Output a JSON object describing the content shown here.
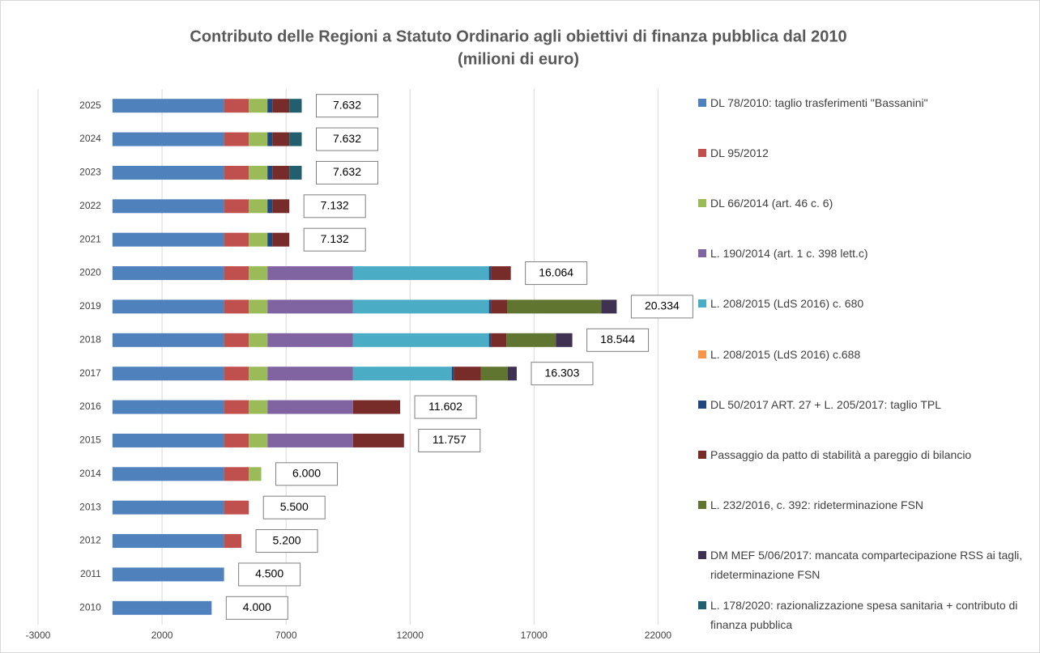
{
  "chart_data": {
    "type": "stacked-bar-horizontal",
    "title": "Contributo delle Regioni a Statuto Ordinario agli obiettivi di finanza pubblica dal 2010",
    "subtitle": "(milioni di euro)",
    "categories": [
      "2025",
      "2024",
      "2023",
      "2022",
      "2021",
      "2020",
      "2019",
      "2018",
      "2017",
      "2016",
      "2015",
      "2014",
      "2013",
      "2012",
      "2011",
      "2010"
    ],
    "xlim": [
      -3000,
      23000
    ],
    "xticks": [
      -3000,
      2000,
      7000,
      12000,
      17000,
      22000
    ],
    "grid": true,
    "legend": "right",
    "series": [
      {
        "name": "DL 78/2010: taglio trasferimenti \"Bassanini\"",
        "color": "#4f81bd",
        "values": [
          4500,
          4500,
          4500,
          4500,
          4500,
          4500,
          4500,
          4500,
          4500,
          4500,
          4500,
          4500,
          4500,
          4500,
          4500,
          4000
        ]
      },
      {
        "name": "DL 95/2012",
        "color": "#c0504d",
        "values": [
          1000,
          1000,
          1000,
          1000,
          1000,
          1000,
          1000,
          1000,
          1000,
          1000,
          1000,
          1000,
          1000,
          700,
          null,
          null
        ]
      },
      {
        "name": "DL 66/2014 (art. 46 c. 6)",
        "color": "#9bbb59",
        "values": [
          750,
          750,
          750,
          750,
          750,
          750,
          750,
          750,
          750,
          750,
          750,
          500,
          null,
          null,
          null,
          null
        ]
      },
      {
        "name": "L. 190/2014 (art. 1 c. 398 lett.c)",
        "color": "#8064a2",
        "values": [
          null,
          null,
          null,
          null,
          null,
          3452,
          3452,
          3452,
          3452,
          3452,
          3452,
          null,
          null,
          null,
          null,
          null
        ]
      },
      {
        "name": "L. 208/2015 (LdS 2016) c. 680",
        "color": "#4bacc6",
        "values": [
          null,
          null,
          null,
          null,
          null,
          5480,
          5480,
          5480,
          3980,
          null,
          null,
          null,
          null,
          null,
          null,
          null
        ]
      },
      {
        "name": "L. 208/2015 (LdS 2016) c.688",
        "color": "#f79646",
        "values": [
          null,
          null,
          null,
          null,
          null,
          null,
          null,
          null,
          null,
          null,
          null,
          null,
          null,
          null,
          null,
          null
        ]
      },
      {
        "name": "DL 50/2017 ART. 27 + L. 205/2017: taglio TPL",
        "color": "#1f497d",
        "values": [
          200,
          200,
          200,
          200,
          200,
          80,
          80,
          80,
          80,
          null,
          null,
          null,
          null,
          null,
          null,
          null
        ]
      },
      {
        "name": "Passaggio da patto di stabilità a pareggio di bilancio",
        "color": "#772c2a",
        "values": [
          682,
          682,
          682,
          682,
          682,
          802,
          650,
          620,
          1100,
          1900,
          2055,
          null,
          null,
          null,
          null,
          null
        ]
      },
      {
        "name": "L. 232/2016, c. 392: rideterminazione FSN",
        "color": "#5f7530",
        "values": [
          null,
          null,
          null,
          null,
          null,
          null,
          3800,
          2000,
          1080,
          null,
          null,
          null,
          null,
          null,
          null,
          null
        ]
      },
      {
        "name": "DM MEF 5/06/2017: mancata compartecipazione RSS ai tagli, rideterminazione FSN",
        "color": "#3f3151",
        "values": [
          null,
          null,
          null,
          null,
          null,
          null,
          622,
          662,
          361,
          null,
          null,
          null,
          null,
          null,
          null,
          null
        ]
      },
      {
        "name": "L. 178/2020: razionalizzazione spesa sanitaria + contributo di finanza pubblica",
        "color": "#215f6e",
        "values": [
          500,
          500,
          500,
          null,
          null,
          null,
          null,
          null,
          null,
          null,
          null,
          null,
          null,
          null,
          null,
          null
        ]
      }
    ],
    "totals": [
      7632,
      7632,
      7632,
      7132,
      7132,
      16064,
      20334,
      18544,
      16303,
      11602,
      11757,
      6000,
      5500,
      5200,
      4500,
      4000
    ],
    "total_labels": [
      "7.632",
      "7.632",
      "7.632",
      "7.132",
      "7.132",
      "16.064",
      "20.334",
      "18.544",
      "16.303",
      "11.602",
      "11.757",
      "6.000",
      "5.500",
      "5.200",
      "4.500",
      "4.000"
    ]
  }
}
